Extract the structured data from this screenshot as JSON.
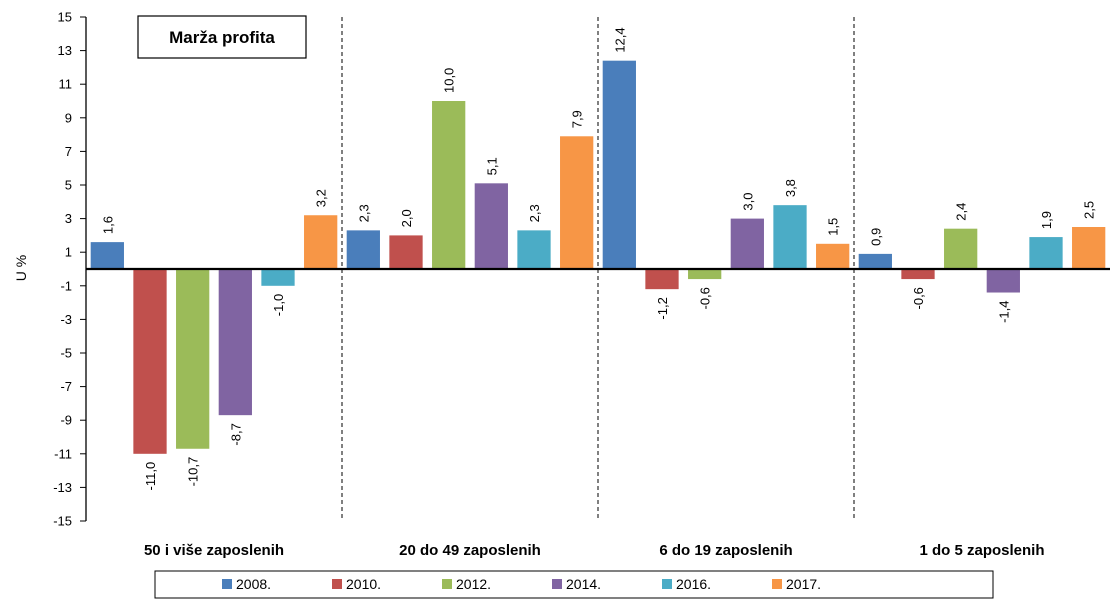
{
  "chart_data": {
    "type": "bar",
    "title": "Marža profita",
    "ylabel": "U %",
    "xlabel": "",
    "ylim": [
      -15,
      15
    ],
    "yticks": [
      -15,
      -13,
      -11,
      -9,
      -7,
      -5,
      -3,
      -1,
      1,
      3,
      5,
      7,
      9,
      11,
      13,
      15
    ],
    "categories": [
      "50 i više zaposlenih",
      "20 do 49 zaposlenih",
      "6 do 19 zaposlenih",
      "1 do 5 zaposlenih"
    ],
    "series": [
      {
        "name": "2008.",
        "color": "#4a7ebb",
        "values": [
          1.6,
          2.3,
          12.4,
          0.9
        ],
        "labels": [
          "1,6",
          "2,3",
          "12,4",
          "0,9"
        ]
      },
      {
        "name": "2010.",
        "color": "#c0504d",
        "values": [
          -11.0,
          2.0,
          -1.2,
          -0.6
        ],
        "labels": [
          "-11,0",
          "2,0",
          "-1,2",
          "-0,6"
        ]
      },
      {
        "name": "2012.",
        "color": "#9bbb59",
        "values": [
          -10.7,
          10.0,
          -0.6,
          2.4
        ],
        "labels": [
          "-10,7",
          "10,0",
          "-0,6",
          "2,4"
        ]
      },
      {
        "name": "2014.",
        "color": "#8064a2",
        "values": [
          -8.7,
          5.1,
          3.0,
          -1.4
        ],
        "labels": [
          "-8,7",
          "5,1",
          "3,0",
          "-1,4"
        ]
      },
      {
        "name": "2016.",
        "color": "#4bacc6",
        "values": [
          -1.0,
          2.3,
          3.8,
          1.9
        ],
        "labels": [
          "-1,0",
          "2,3",
          "3,8",
          "1,9"
        ]
      },
      {
        "name": "2017.",
        "color": "#f79646",
        "values": [
          3.2,
          7.9,
          1.5,
          2.5
        ],
        "labels": [
          "3,2",
          "7,9",
          "1,5",
          "2,5"
        ]
      }
    ],
    "legend_position": "bottom",
    "grid": false,
    "group_separators": true
  }
}
